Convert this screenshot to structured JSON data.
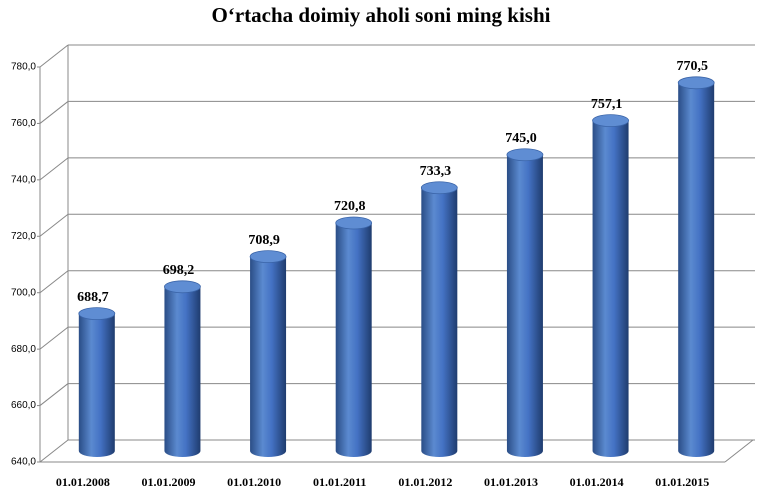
{
  "chart_data": {
    "type": "bar",
    "title": "O‘rtacha doimiy aholi soni ming kishi",
    "categories": [
      "01.01.2008",
      "01.01.2009",
      "01.01.2010",
      "01.01.2011",
      "01.01.2012",
      "01.01.2013",
      "01.01.2014",
      "01.01.2015"
    ],
    "values": [
      688.7,
      698.2,
      708.9,
      720.8,
      733.3,
      745.0,
      757.1,
      770.5
    ],
    "value_labels": [
      "688,7",
      "698,2",
      "708,9",
      "720,8",
      "733,3",
      "745,0",
      "757,1",
      "770,5"
    ],
    "color": "#4472c4",
    "ylim": [
      640,
      780
    ],
    "yticks": [
      {
        "value": 640,
        "label": "640,0"
      },
      {
        "value": 660,
        "label": "660,0"
      },
      {
        "value": 680,
        "label": "680,0"
      },
      {
        "value": 700,
        "label": "700,0"
      },
      {
        "value": 720,
        "label": "720,0"
      },
      {
        "value": 740,
        "label": "740,0"
      },
      {
        "value": 760,
        "label": "760,0"
      },
      {
        "value": 780,
        "label": "780,0"
      }
    ],
    "grid": true
  }
}
